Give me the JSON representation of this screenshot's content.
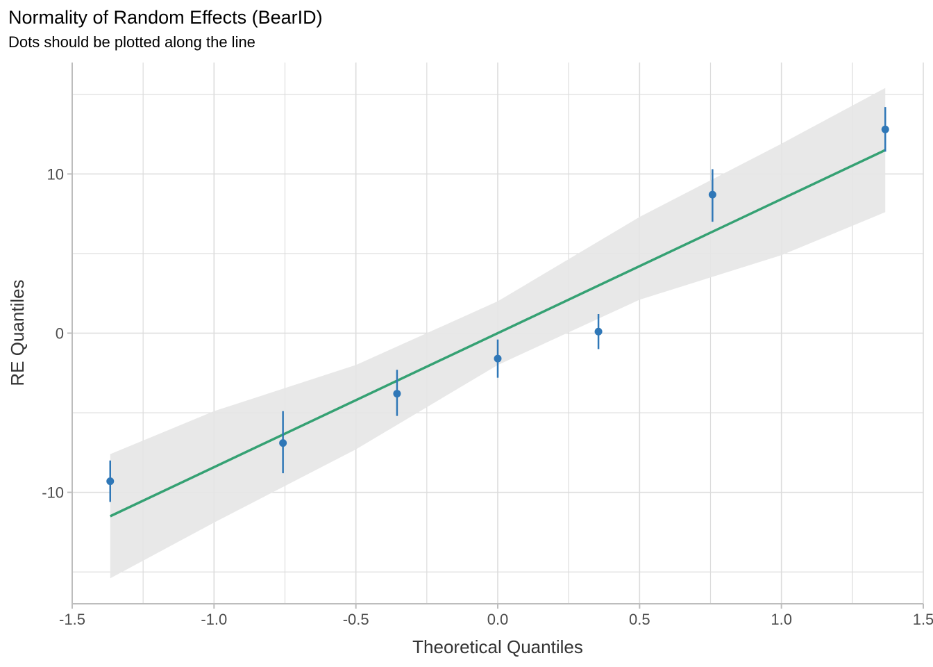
{
  "chart_data": {
    "type": "scatter",
    "title": "Normality of Random Effects (BearID)",
    "subtitle": "Dots should be plotted along the line",
    "xlabel": "Theoretical Quantiles",
    "ylabel": "RE Quantiles",
    "xlim": [
      -1.5,
      1.5
    ],
    "ylim": [
      -17,
      17
    ],
    "x_ticks": [
      -1.5,
      -1.0,
      -0.5,
      0.0,
      0.5,
      1.0,
      1.5
    ],
    "x_tick_labels": [
      "-1.5",
      "-1.0",
      "-0.5",
      "0.0",
      "0.5",
      "1.0",
      "1.5"
    ],
    "y_ticks": [
      -10,
      0,
      10
    ],
    "y_tick_labels": [
      "-10",
      "0",
      "10"
    ],
    "grid": true,
    "points": [
      {
        "x": -1.366,
        "y": -9.3,
        "lower": -10.6,
        "upper": -8.0
      },
      {
        "x": -0.757,
        "y": -6.9,
        "lower": -8.8,
        "upper": -4.9
      },
      {
        "x": -0.355,
        "y": -3.8,
        "lower": -5.2,
        "upper": -2.3
      },
      {
        "x": 0.0,
        "y": -1.6,
        "lower": -2.8,
        "upper": -0.4
      },
      {
        "x": 0.355,
        "y": 0.1,
        "lower": -1.0,
        "upper": 1.2
      },
      {
        "x": 0.757,
        "y": 8.7,
        "lower": 7.0,
        "upper": 10.3
      },
      {
        "x": 1.366,
        "y": 12.8,
        "lower": 11.4,
        "upper": 14.2
      }
    ],
    "reference_line": {
      "x": [
        -1.366,
        1.366
      ],
      "y": [
        -11.5,
        11.5
      ]
    },
    "confidence_band": {
      "x": [
        -1.366,
        -1.0,
        -0.5,
        0.0,
        0.5,
        1.0,
        1.366
      ],
      "lower": [
        -15.4,
        -11.9,
        -7.3,
        -2.0,
        2.1,
        4.9,
        7.6
      ],
      "upper": [
        -7.6,
        -4.9,
        -2.0,
        2.0,
        7.3,
        11.9,
        15.4
      ]
    },
    "colors": {
      "points": "#2f77b7",
      "line": "#35a173",
      "band": "#e6e6e6",
      "grid": "#dcdcdc",
      "axis": "#bdbdbd"
    }
  }
}
